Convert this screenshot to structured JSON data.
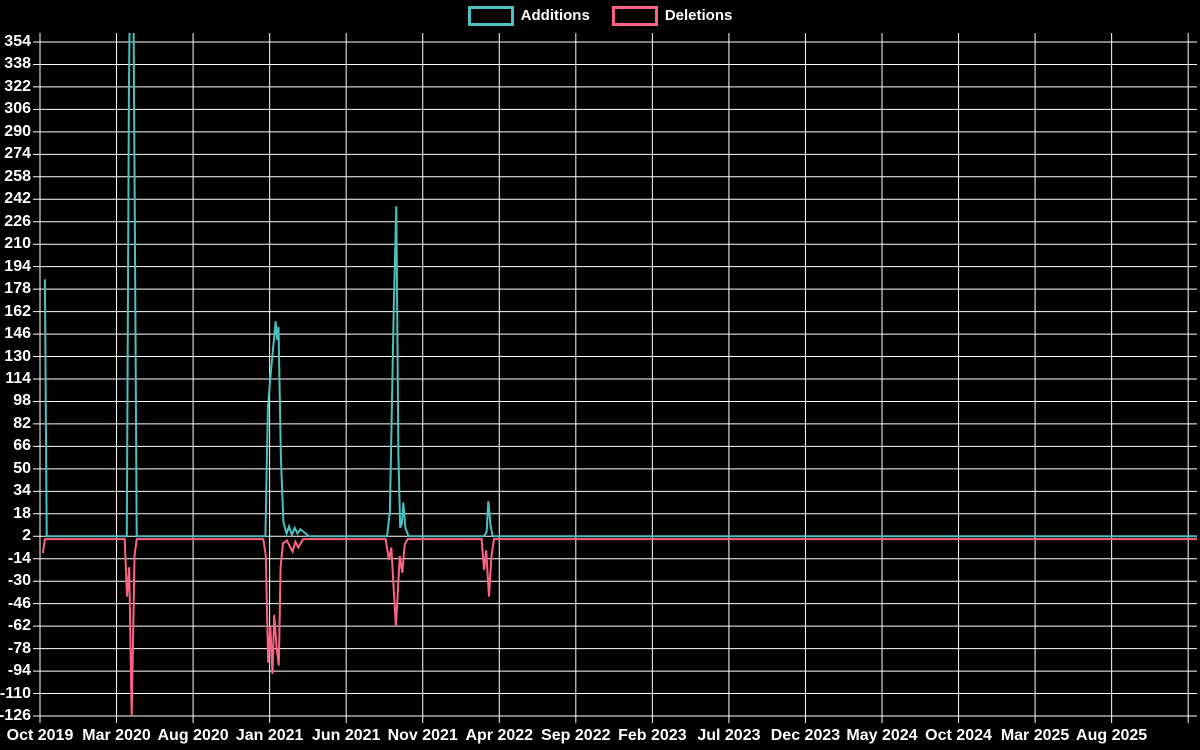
{
  "chart_data": {
    "type": "line",
    "background": "#000000",
    "grid_color": "#ffffff",
    "text_color": "#ffffff",
    "legend": [
      {
        "label": "Additions",
        "color": "#4bc0c0"
      },
      {
        "label": "Deletions",
        "color": "#ff6384"
      }
    ],
    "x_labels": [
      "Oct 2019",
      "Mar 2020",
      "Aug 2020",
      "Jan 2021",
      "Jun 2021",
      "Nov 2021",
      "Apr 2022",
      "Sep 2022",
      "Feb 2023",
      "Jul 2023",
      "Dec 2023",
      "May 2024",
      "Oct 2024",
      "Mar 2025",
      "Aug 2025"
    ],
    "x_label_interval_weeks": 21.7,
    "x_range_weeks": [
      0,
      328
    ],
    "y_ticks": [
      354,
      338,
      322,
      306,
      290,
      274,
      258,
      242,
      226,
      210,
      194,
      178,
      162,
      146,
      130,
      114,
      98,
      82,
      66,
      50,
      34,
      18,
      2,
      -14,
      -30,
      -46,
      -62,
      -78,
      -94,
      -110,
      -126
    ],
    "ylim": [
      -126,
      354
    ],
    "grid": true,
    "legend_position": "top",
    "baseline": {
      "additions": 2,
      "deletions": 0
    },
    "series": [
      {
        "name": "Deletions",
        "color": "#ff6384",
        "points": [
          [
            0.8,
            -10
          ],
          [
            1.4,
            0
          ],
          [
            24.0,
            0
          ],
          [
            24.65,
            -41
          ],
          [
            25.3,
            -20
          ],
          [
            26.0,
            -126
          ],
          [
            26.8,
            -12
          ],
          [
            27.4,
            0
          ],
          [
            63.3,
            0
          ],
          [
            64.0,
            -12
          ],
          [
            64.7,
            -88
          ],
          [
            65.3,
            -62
          ],
          [
            65.9,
            -96
          ],
          [
            66.4,
            -54
          ],
          [
            67.1,
            -78
          ],
          [
            67.7,
            -90
          ],
          [
            68.2,
            -20
          ],
          [
            68.9,
            -3
          ],
          [
            70.0,
            -1
          ],
          [
            71.6,
            -9
          ],
          [
            72.4,
            -2
          ],
          [
            73.2,
            -6
          ],
          [
            74.6,
            0
          ],
          [
            98.0,
            0
          ],
          [
            98.9,
            -15
          ],
          [
            99.6,
            -6
          ],
          [
            100.9,
            -62
          ],
          [
            101.5,
            -35
          ],
          [
            102.0,
            -12
          ],
          [
            102.7,
            -24
          ],
          [
            103.4,
            -4
          ],
          [
            104.2,
            0
          ],
          [
            125.2,
            0
          ],
          [
            125.9,
            -22
          ],
          [
            126.5,
            -8
          ],
          [
            127.3,
            -41
          ],
          [
            128.0,
            -12
          ],
          [
            128.7,
            0
          ],
          [
            328,
            0
          ]
        ]
      },
      {
        "name": "Additions",
        "color": "#4bc0c0",
        "points": [
          [
            1.4,
            185
          ],
          [
            1.9,
            2
          ],
          [
            24.6,
            2
          ],
          [
            25.2,
            316
          ],
          [
            25.6,
            420
          ],
          [
            26.4,
            420
          ],
          [
            26.9,
            218
          ],
          [
            27.4,
            2
          ],
          [
            63.9,
            2
          ],
          [
            64.6,
            94
          ],
          [
            65.2,
            112
          ],
          [
            66.8,
            155
          ],
          [
            67.2,
            142
          ],
          [
            67.6,
            151
          ],
          [
            68.3,
            58
          ],
          [
            69.0,
            12
          ],
          [
            69.9,
            4
          ],
          [
            70.6,
            9
          ],
          [
            71.4,
            3
          ],
          [
            72.2,
            8
          ],
          [
            73.0,
            4
          ],
          [
            73.8,
            7
          ],
          [
            74.8,
            5
          ],
          [
            76.2,
            2
          ],
          [
            98.4,
            2
          ],
          [
            99.2,
            20
          ],
          [
            100.3,
            166
          ],
          [
            101.0,
            237
          ],
          [
            101.6,
            60
          ],
          [
            102.1,
            8
          ],
          [
            102.6,
            11
          ],
          [
            103.0,
            26
          ],
          [
            103.6,
            8
          ],
          [
            104.5,
            2
          ],
          [
            125.8,
            2
          ],
          [
            126.6,
            5
          ],
          [
            127.1,
            27
          ],
          [
            127.7,
            10
          ],
          [
            128.3,
            2
          ],
          [
            328,
            2
          ]
        ]
      }
    ]
  }
}
